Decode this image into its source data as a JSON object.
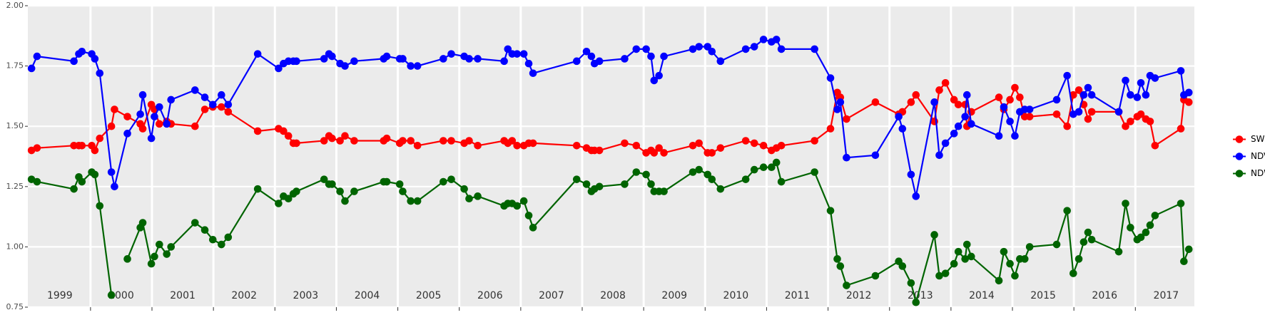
{
  "chart_data": {
    "type": "line",
    "x": [
      1999.04,
      1999.13,
      1999.73,
      1999.81,
      1999.86,
      2000.02,
      2000.07,
      2000.15,
      2000.34,
      2000.39,
      2000.6,
      2000.81,
      2000.85,
      2000.99,
      2001.04,
      2001.12,
      2001.24,
      2001.31,
      2001.7,
      2001.86,
      2001.99,
      2002.13,
      2002.24,
      2002.72,
      2003.06,
      2003.14,
      2003.22,
      2003.3,
      2003.35,
      2003.8,
      2003.88,
      2003.93,
      2004.06,
      2004.14,
      2004.29,
      2004.77,
      2004.82,
      2005.03,
      2005.08,
      2005.21,
      2005.32,
      2005.74,
      2005.87,
      2006.08,
      2006.16,
      2006.3,
      2006.73,
      2006.79,
      2006.86,
      2006.94,
      2007.05,
      2007.13,
      2007.2,
      2007.91,
      2008.07,
      2008.15,
      2008.2,
      2008.28,
      2008.69,
      2008.88,
      2009.04,
      2009.12,
      2009.17,
      2009.25,
      2009.33,
      2009.8,
      2009.9,
      2010.04,
      2010.11,
      2010.25,
      2010.66,
      2010.8,
      2010.95,
      2011.08,
      2011.16,
      2011.24,
      2011.78,
      2012.04,
      2012.15,
      2012.2,
      2012.3,
      2012.77,
      2013.15,
      2013.21,
      2013.35,
      2013.43,
      2013.73,
      2013.81,
      2013.91,
      2014.05,
      2014.12,
      2014.23,
      2014.26,
      2014.33,
      2014.78,
      2014.86,
      2014.96,
      2015.04,
      2015.12,
      2015.2,
      2015.28,
      2015.72,
      2015.89,
      2015.99,
      2016.08,
      2016.16,
      2016.23,
      2016.29,
      2016.73,
      2016.84,
      2016.92,
      2017.03,
      2017.09,
      2017.17,
      2017.24,
      2017.32,
      2017.74,
      2017.79,
      2017.87
    ],
    "series": [
      {
        "name": "SWIR",
        "color": "#ff0000",
        "values": [
          1.4,
          1.41,
          1.42,
          1.42,
          1.42,
          1.42,
          1.4,
          1.45,
          1.5,
          1.57,
          1.54,
          1.51,
          1.49,
          1.59,
          1.57,
          1.51,
          1.52,
          1.51,
          1.5,
          1.57,
          1.58,
          1.58,
          1.56,
          1.48,
          1.49,
          1.48,
          1.46,
          1.43,
          1.43,
          1.44,
          1.46,
          1.45,
          1.44,
          1.46,
          1.44,
          1.44,
          1.45,
          1.43,
          1.44,
          1.44,
          1.42,
          1.44,
          1.44,
          1.43,
          1.44,
          1.42,
          1.44,
          1.43,
          1.44,
          1.42,
          1.42,
          1.43,
          1.43,
          1.42,
          1.41,
          1.4,
          1.4,
          1.4,
          1.43,
          1.42,
          1.39,
          1.4,
          1.39,
          1.41,
          1.39,
          1.42,
          1.43,
          1.39,
          1.39,
          1.41,
          1.44,
          1.43,
          1.42,
          1.4,
          1.41,
          1.42,
          1.44,
          1.49,
          1.64,
          1.62,
          1.53,
          1.6,
          1.55,
          1.56,
          1.6,
          1.63,
          1.52,
          1.65,
          1.68,
          1.61,
          1.59,
          1.59,
          1.5,
          1.56,
          1.62,
          1.57,
          1.61,
          1.66,
          1.62,
          1.54,
          1.54,
          1.55,
          1.5,
          1.63,
          1.65,
          1.59,
          1.53,
          1.56,
          1.56,
          1.5,
          1.52,
          1.54,
          1.55,
          1.53,
          1.52,
          1.42,
          1.49,
          1.61,
          1.6
        ]
      },
      {
        "name": "NDVI",
        "color": "#0000ff",
        "values": [
          1.74,
          1.79,
          1.77,
          1.8,
          1.81,
          1.8,
          1.78,
          1.72,
          1.31,
          1.25,
          1.47,
          1.55,
          1.63,
          1.45,
          1.54,
          1.58,
          1.51,
          1.61,
          1.65,
          1.62,
          1.59,
          1.63,
          1.59,
          1.8,
          1.74,
          1.76,
          1.77,
          1.77,
          1.77,
          1.78,
          1.8,
          1.79,
          1.76,
          1.75,
          1.77,
          1.78,
          1.79,
          1.78,
          1.78,
          1.75,
          1.75,
          1.78,
          1.8,
          1.79,
          1.78,
          1.78,
          1.77,
          1.82,
          1.8,
          1.8,
          1.8,
          1.76,
          1.72,
          1.77,
          1.81,
          1.79,
          1.76,
          1.77,
          1.78,
          1.82,
          1.82,
          1.79,
          1.69,
          1.71,
          1.79,
          1.82,
          1.83,
          1.83,
          1.81,
          1.77,
          1.82,
          1.83,
          1.86,
          1.85,
          1.86,
          1.82,
          1.82,
          1.7,
          1.57,
          1.6,
          1.37,
          1.38,
          1.54,
          1.49,
          1.3,
          1.21,
          1.6,
          1.38,
          1.43,
          1.47,
          1.5,
          1.54,
          1.63,
          1.51,
          1.46,
          1.58,
          1.52,
          1.46,
          1.56,
          1.57,
          1.57,
          1.61,
          1.71,
          1.55,
          1.56,
          1.63,
          1.66,
          1.63,
          1.56,
          1.69,
          1.63,
          1.62,
          1.68,
          1.63,
          1.71,
          1.7,
          1.73,
          1.63,
          1.64
        ]
      },
      {
        "name": "NDWI",
        "color": "#006400",
        "values": [
          1.28,
          1.27,
          1.24,
          1.29,
          1.27,
          1.31,
          1.3,
          1.17,
          0.8,
          null,
          0.95,
          1.08,
          1.1,
          0.93,
          0.96,
          1.01,
          0.97,
          1.0,
          1.1,
          1.07,
          1.03,
          1.01,
          1.04,
          1.24,
          1.18,
          1.21,
          1.2,
          1.22,
          1.23,
          1.28,
          1.26,
          1.26,
          1.23,
          1.19,
          1.23,
          1.27,
          1.27,
          1.26,
          1.23,
          1.19,
          1.19,
          1.27,
          1.28,
          1.24,
          1.2,
          1.21,
          1.17,
          1.18,
          1.18,
          1.17,
          1.19,
          1.13,
          1.08,
          1.28,
          1.26,
          1.23,
          1.24,
          1.25,
          1.26,
          1.31,
          1.3,
          1.26,
          1.23,
          1.23,
          1.23,
          1.31,
          1.32,
          1.3,
          1.28,
          1.24,
          1.28,
          1.32,
          1.33,
          1.33,
          1.35,
          1.27,
          1.31,
          1.15,
          0.95,
          0.92,
          0.84,
          0.88,
          0.94,
          0.92,
          0.85,
          0.77,
          1.05,
          0.88,
          0.89,
          0.93,
          0.98,
          0.95,
          1.01,
          0.96,
          0.86,
          0.98,
          0.93,
          0.88,
          0.95,
          0.95,
          1.0,
          1.01,
          1.15,
          0.89,
          0.95,
          1.02,
          1.06,
          1.03,
          0.98,
          1.18,
          1.08,
          1.03,
          1.04,
          1.06,
          1.09,
          1.13,
          1.18,
          0.94,
          0.99
        ]
      }
    ],
    "xlim": [
      1998.98,
      2017.96
    ],
    "xticks": [
      {
        "value": 1999.5,
        "label": "1999"
      },
      {
        "value": 2000.5,
        "label": "2000"
      },
      {
        "value": 2001.5,
        "label": "2001"
      },
      {
        "value": 2002.5,
        "label": "2002"
      },
      {
        "value": 2003.5,
        "label": "2003"
      },
      {
        "value": 2004.5,
        "label": "2004"
      },
      {
        "value": 2005.5,
        "label": "2005"
      },
      {
        "value": 2006.5,
        "label": "2006"
      },
      {
        "value": 2007.5,
        "label": "2007"
      },
      {
        "value": 2008.5,
        "label": "2008"
      },
      {
        "value": 2009.5,
        "label": "2009"
      },
      {
        "value": 2010.5,
        "label": "2010"
      },
      {
        "value": 2011.5,
        "label": "2011"
      },
      {
        "value": 2012.5,
        "label": "2012"
      },
      {
        "value": 2013.5,
        "label": "2013"
      },
      {
        "value": 2014.5,
        "label": "2014"
      },
      {
        "value": 2015.5,
        "label": "2015"
      },
      {
        "value": 2016.5,
        "label": "2016"
      },
      {
        "value": 2017.5,
        "label": "2017"
      }
    ],
    "xgrid": [
      2000,
      2001,
      2002,
      2003,
      2004,
      2005,
      2006,
      2007,
      2008,
      2009,
      2010,
      2011,
      2012,
      2013,
      2014,
      2015,
      2016,
      2017
    ],
    "ylim": [
      0.75,
      2.0
    ],
    "yticks": [
      {
        "value": 0.75,
        "label": "0.75"
      },
      {
        "value": 1,
        "label": "1.00"
      },
      {
        "value": 1.25,
        "label": "1.25"
      },
      {
        "value": 1.5,
        "label": "1.50"
      },
      {
        "value": 1.75,
        "label": "1.75"
      },
      {
        "value": 2,
        "label": "2.00"
      }
    ],
    "grid": true,
    "legend": "right"
  }
}
